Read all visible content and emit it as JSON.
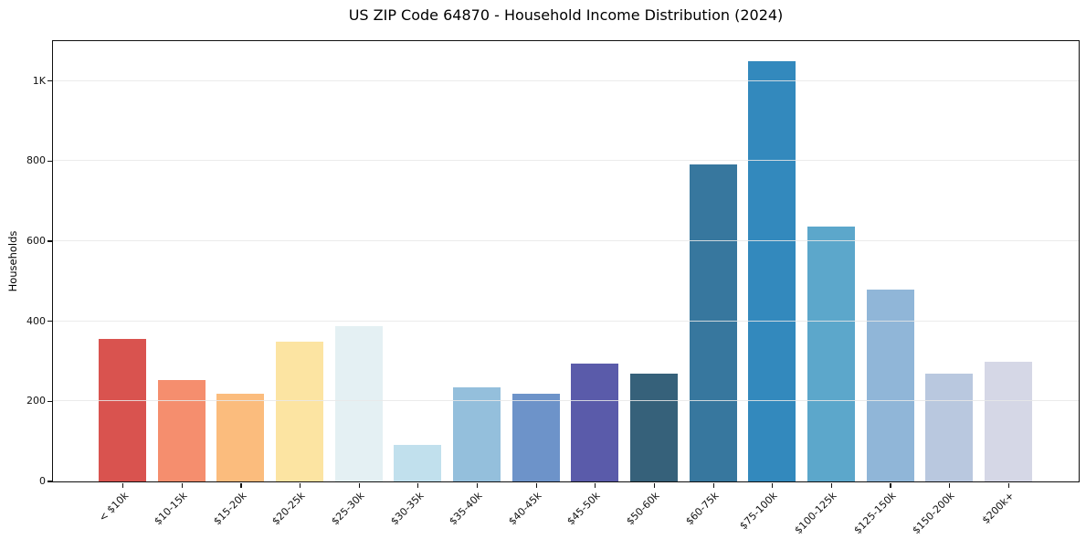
{
  "chart_data": {
    "type": "bar",
    "title": "US ZIP Code 64870 - Household Income Distribution (2024)",
    "xlabel": "",
    "ylabel": "Households",
    "categories": [
      "< $10k",
      "$10-15k",
      "$15-20k",
      "$20-25k",
      "$25-30k",
      "$30-35k",
      "$35-40k",
      "$40-45k",
      "$45-50k",
      "$50-60k",
      "$60-75k",
      "$75-100k",
      "$100-125k",
      "$125-150k",
      "$150-200k",
      "$200k+"
    ],
    "values": [
      355,
      252,
      218,
      347,
      388,
      91,
      234,
      218,
      293,
      268,
      790,
      1048,
      635,
      479,
      268,
      297
    ],
    "bar_colors": [
      "#d9534f",
      "#f58e6e",
      "#fbbc7d",
      "#fce4a2",
      "#e4f0f3",
      "#c1e0ed",
      "#94bfdc",
      "#6d93c9",
      "#5a5baa",
      "#36617a",
      "#37779e",
      "#3389bd",
      "#5ca7cb",
      "#90b6d8",
      "#b9c8df",
      "#d5d7e6"
    ],
    "ylim": [
      0,
      1100
    ],
    "yticks": [
      {
        "value": 0,
        "label": "0"
      },
      {
        "value": 200,
        "label": "200"
      },
      {
        "value": 400,
        "label": "400"
      },
      {
        "value": 600,
        "label": "600"
      },
      {
        "value": 800,
        "label": "800"
      },
      {
        "value": 1000,
        "label": "1K"
      }
    ],
    "grid": "horizontal",
    "grid_color": "#e8e8e8",
    "spine_color": "#0f0f0f",
    "background_color": "#ffffff"
  }
}
